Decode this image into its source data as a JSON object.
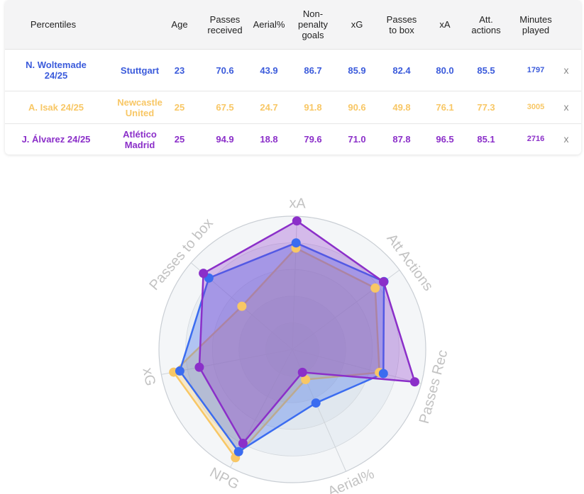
{
  "table": {
    "headers": [
      "Percentiles",
      "Age",
      "Passes received",
      "Aerial%",
      "Non-penalty goals",
      "xG",
      "Passes to box",
      "xA",
      "Att. actions",
      "Minutes played"
    ],
    "remove_label": "x",
    "rows": [
      {
        "player": "N. Woltemade 24/25",
        "team": "Stuttgart",
        "color": "#3b5bdb",
        "values": [
          "23",
          "70.6",
          "43.9",
          "86.7",
          "85.9",
          "82.4",
          "80.0",
          "85.5",
          "1797"
        ]
      },
      {
        "player": "A. Isak 24/25",
        "team": "Newcastle United",
        "color": "#f8c765",
        "values": [
          "25",
          "67.5",
          "24.7",
          "91.8",
          "90.6",
          "49.8",
          "76.1",
          "77.3",
          "3005"
        ]
      },
      {
        "player": "J. Álvarez 24/25",
        "team": "Atlético Madrid",
        "color": "#8b2fc9",
        "values": [
          "25",
          "94.9",
          "18.8",
          "79.6",
          "71.0",
          "87.8",
          "96.5",
          "85.1",
          "2716"
        ]
      }
    ]
  },
  "chart_data": {
    "type": "radar",
    "axes": [
      "xA",
      "Att Actions",
      "Passes Rec",
      "Aerial%",
      "NPG",
      "xG",
      "Passes to box"
    ],
    "range": [
      0,
      100
    ],
    "series": [
      {
        "name": "N. Woltemade 24/25",
        "color": "#3b6cf0",
        "values": [
          80.0,
          85.5,
          70.6,
          43.9,
          86.7,
          85.9,
          82.4
        ]
      },
      {
        "name": "A. Isak 24/25",
        "color": "#f8c765",
        "values": [
          76.1,
          77.3,
          67.5,
          24.7,
          91.8,
          90.6,
          49.8
        ]
      },
      {
        "name": "J. Álvarez 24/25",
        "color": "#8b2fc9",
        "values": [
          96.5,
          85.1,
          94.9,
          18.8,
          79.6,
          71.0,
          87.8
        ]
      }
    ]
  }
}
